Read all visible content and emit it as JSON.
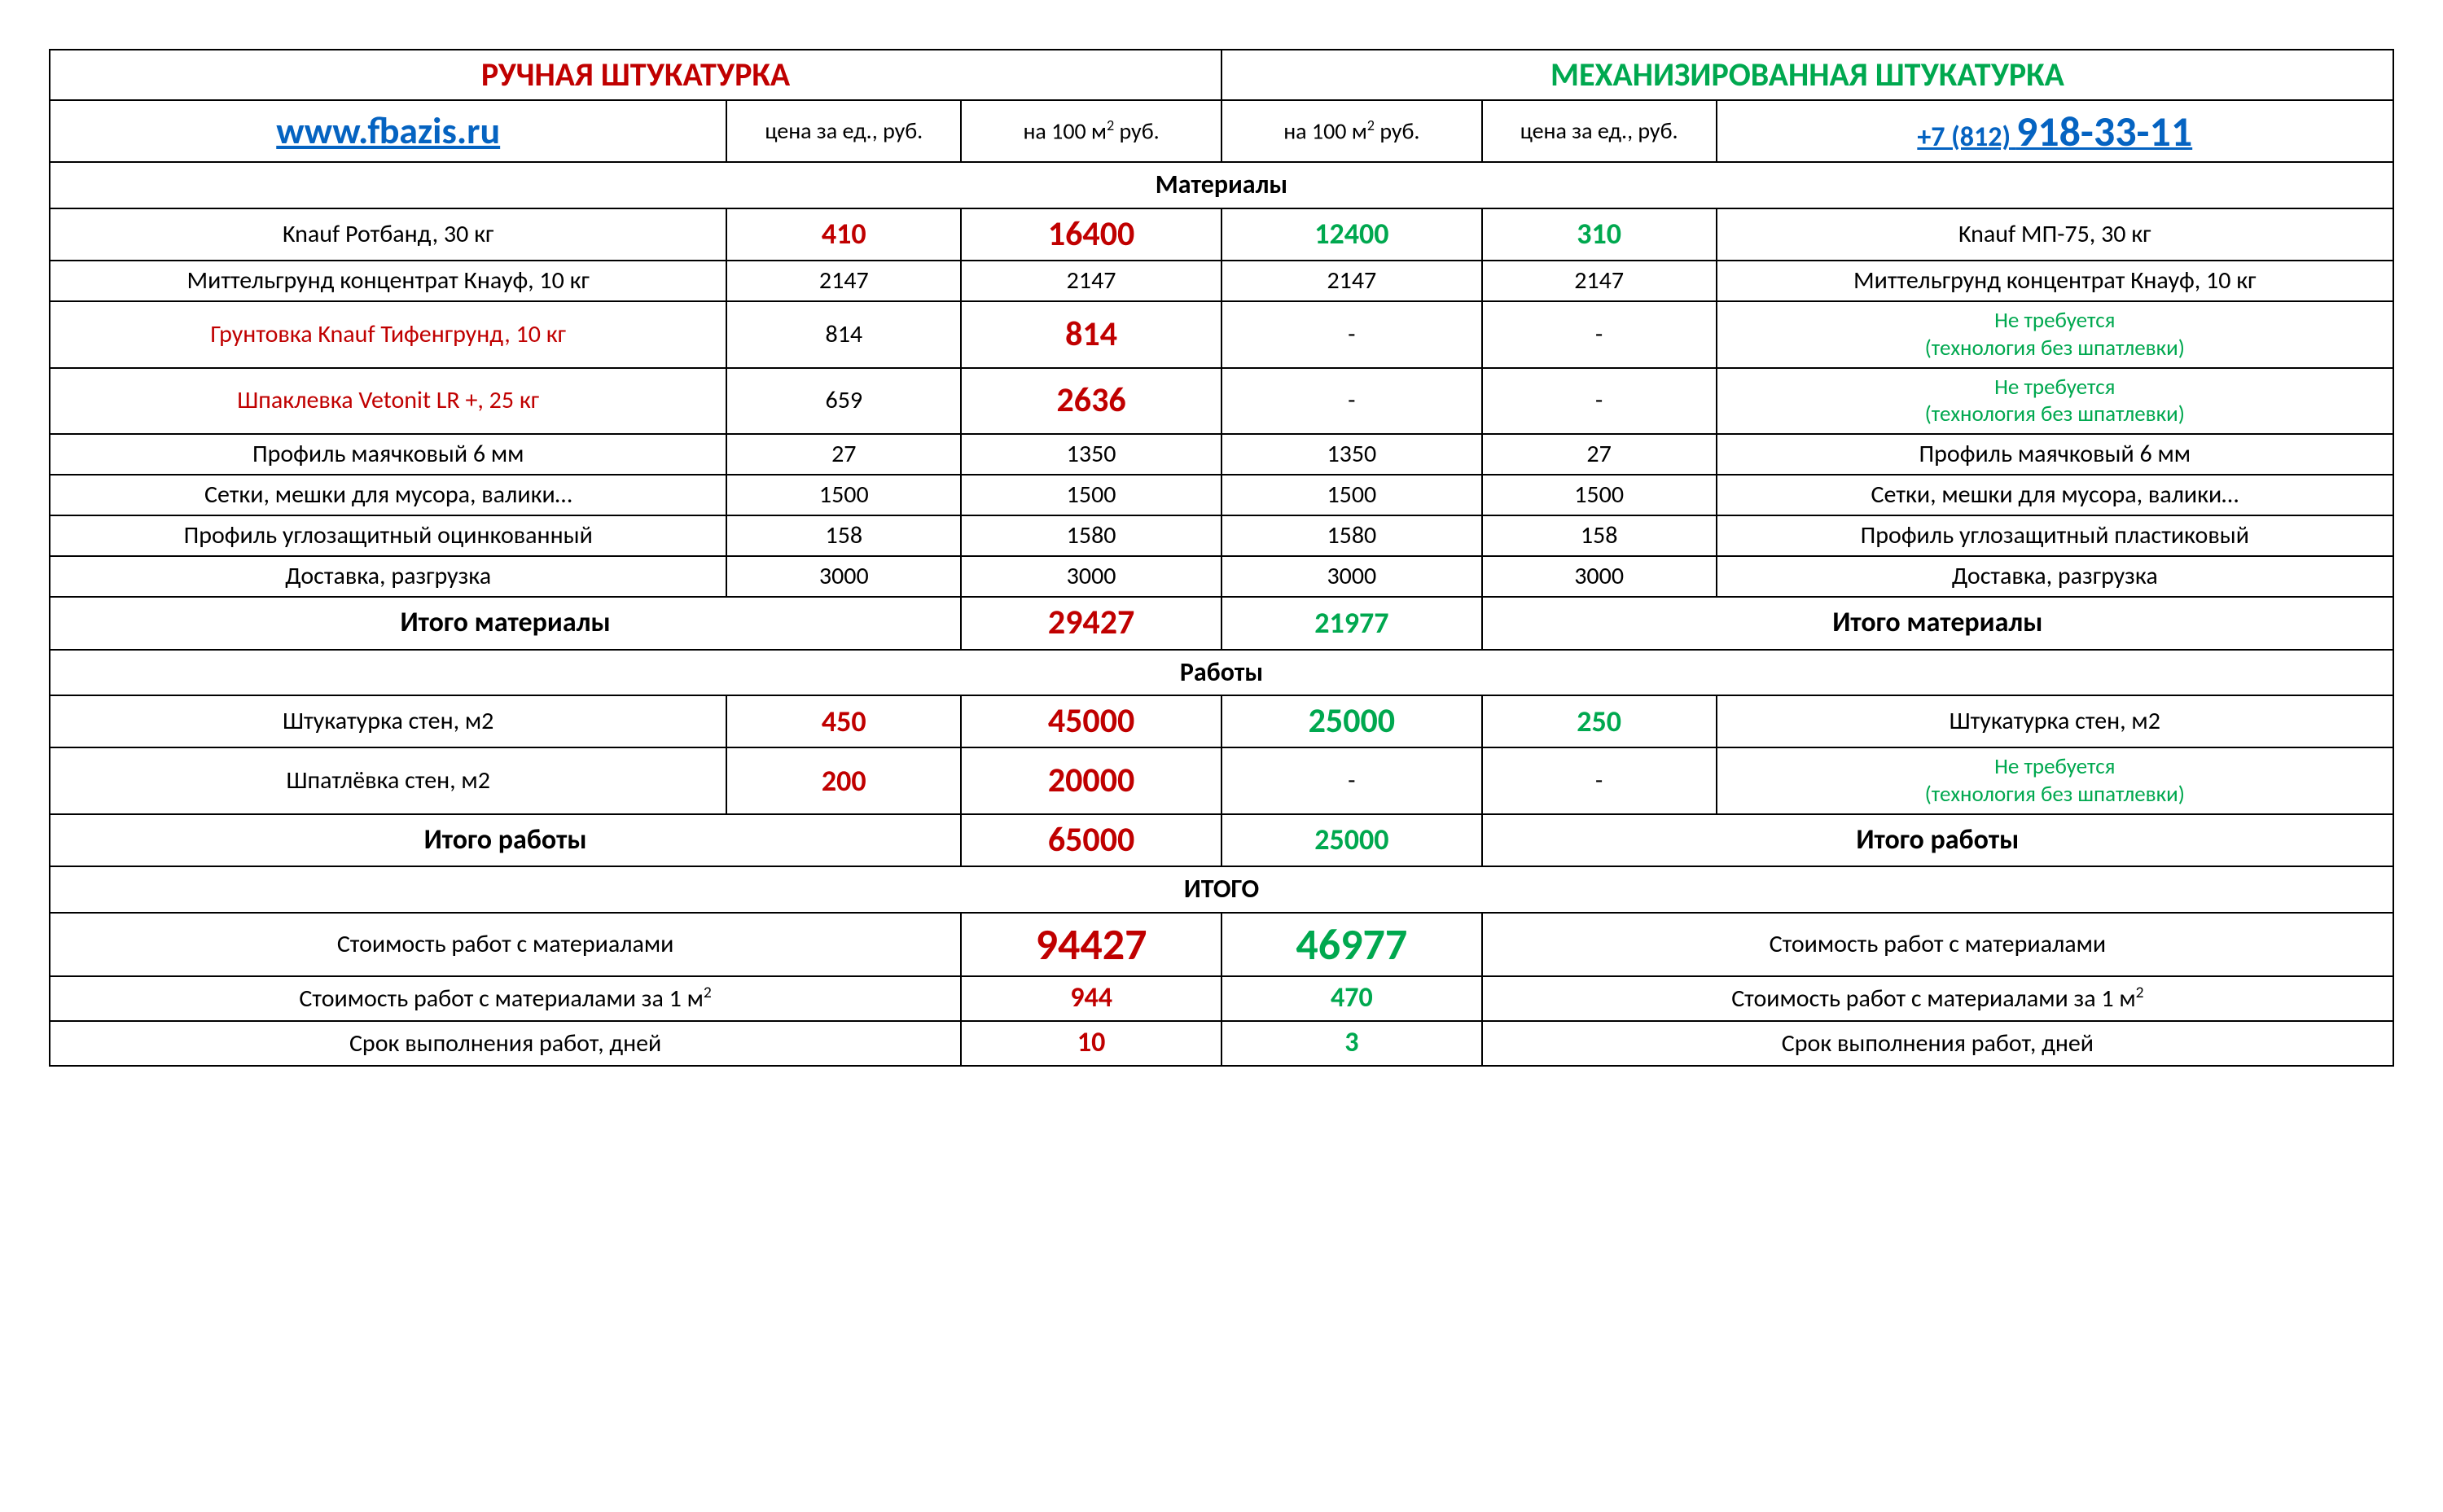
{
  "colors": {
    "red": "#c00000",
    "green": "#00a84f",
    "blue_link": "#0563c1",
    "border": "#000000",
    "background": "#ffffff",
    "text": "#000000"
  },
  "fonts": {
    "family": "Calibri, Arial, sans-serif",
    "header_size_pt": 30,
    "body_size_pt": 22,
    "totals_size_pt": 40
  },
  "header": {
    "left_title": "РУЧНАЯ ШТУКАТУРКА",
    "right_title": "МЕХАНИЗИРОВАННАЯ ШТУКАТУРКА",
    "website": "www.fbazis.ru",
    "phone_prefix": "+7 (812)",
    "phone_main": "918-33-11",
    "col_price_unit": "цена за ед., руб.",
    "col_per_100m2_html": "на 100 м<sup>2</sup> руб."
  },
  "sections": {
    "materials": "Материалы",
    "works": "Работы",
    "total": "ИТОГО"
  },
  "materials": [
    {
      "left_name": "Knauf Ротбанд, 30 кг",
      "left_name_color": "black",
      "left_unit": "410",
      "left_unit_style": "red-bold",
      "left_total": "16400",
      "left_total_style": "red-bold-big",
      "right_total": "12400",
      "right_total_style": "green-bold",
      "right_unit": "310",
      "right_unit_style": "green-bold",
      "right_name": "Knauf МП-75, 30 кг",
      "right_note": ""
    },
    {
      "left_name": "Миттельгрунд концентрат Кнауф, 10 кг",
      "left_name_color": "black",
      "left_unit": "2147",
      "left_unit_style": "black",
      "left_total": "2147",
      "left_total_style": "black",
      "right_total": "2147",
      "right_total_style": "black",
      "right_unit": "2147",
      "right_unit_style": "black",
      "right_name": "Миттельгрунд концентрат Кнауф, 10 кг",
      "right_note": ""
    },
    {
      "left_name": "Грунтовка Knauf Тифенгрунд, 10 кг",
      "left_name_color": "red",
      "left_unit": "814",
      "left_unit_style": "black",
      "left_total": "814",
      "left_total_style": "red-bold-big",
      "right_total": "-",
      "right_total_style": "black",
      "right_unit": "-",
      "right_unit_style": "black",
      "right_name": "",
      "right_note": "Не требуется\n(технология без шпатлевки)"
    },
    {
      "left_name": "Шпаклевка Vetonit LR +,  25 кг",
      "left_name_color": "red",
      "left_unit": "659",
      "left_unit_style": "black",
      "left_total": "2636",
      "left_total_style": "red-bold-big",
      "right_total": "-",
      "right_total_style": "black",
      "right_unit": "-",
      "right_unit_style": "black",
      "right_name": "",
      "right_note": "Не требуется\n(технология без шпатлевки)"
    },
    {
      "left_name": "Профиль маячковый 6 мм",
      "left_name_color": "black",
      "left_unit": "27",
      "left_unit_style": "black",
      "left_total": "1350",
      "left_total_style": "black",
      "right_total": "1350",
      "right_total_style": "black",
      "right_unit": "27",
      "right_unit_style": "black",
      "right_name": "Профиль маячковый 6 мм",
      "right_note": ""
    },
    {
      "left_name": "Сетки, мешки для мусора, валики…",
      "left_name_color": "black",
      "left_unit": "1500",
      "left_unit_style": "black",
      "left_total": "1500",
      "left_total_style": "black",
      "right_total": "1500",
      "right_total_style": "black",
      "right_unit": "1500",
      "right_unit_style": "black",
      "right_name": "Сетки, мешки для мусора, валики…",
      "right_note": ""
    },
    {
      "left_name": "Профиль углозащитный оцинкованный",
      "left_name_color": "black",
      "left_unit": "158",
      "left_unit_style": "black",
      "left_total": "1580",
      "left_total_style": "black",
      "right_total": "1580",
      "right_total_style": "black",
      "right_unit": "158",
      "right_unit_style": "black",
      "right_name": "Профиль углозащитный пластиковый",
      "right_note": ""
    },
    {
      "left_name": "Доставка, разгрузка",
      "left_name_color": "black",
      "left_unit": "3000",
      "left_unit_style": "black",
      "left_total": "3000",
      "left_total_style": "black",
      "right_total": "3000",
      "right_total_style": "black",
      "right_unit": "3000",
      "right_unit_style": "black",
      "right_name": "Доставка, разгрузка",
      "right_note": ""
    }
  ],
  "materials_total": {
    "left_label": "Итого материалы",
    "left_value": "29427",
    "right_value": "21977",
    "right_label": "Итого материалы"
  },
  "works": [
    {
      "left_name": "Штукатурка стен, м2",
      "left_unit": "450",
      "left_total": "45000",
      "right_total": "25000",
      "right_unit": "250",
      "right_name": "Штукатурка стен, м2",
      "right_note": ""
    },
    {
      "left_name": "Шпатлёвка стен, м2",
      "left_unit": "200",
      "left_total": "20000",
      "right_total": "-",
      "right_unit": "-",
      "right_name": "",
      "right_note": "Не требуется\n(технология без шпатлевки)"
    }
  ],
  "works_total": {
    "left_label": "Итого работы",
    "left_value": "65000",
    "right_value": "25000",
    "right_label": "Итого работы"
  },
  "grand": [
    {
      "left_label": "Стоимость работ с материалами",
      "left_value": "94427",
      "left_style": "huge",
      "right_value": "46977",
      "right_style": "huge",
      "right_label": "Стоимость работ с материалами"
    },
    {
      "left_label_html": "Стоимость работ с материалами за 1 м<sup>2</sup>",
      "left_value": "944",
      "left_style": "med",
      "right_value": "470",
      "right_style": "med",
      "right_label_html": "Стоимость работ с материалами за 1 м<sup>2</sup>"
    },
    {
      "left_label": "Срок выполнения работ, дней",
      "left_value": "10",
      "left_style": "med",
      "right_value": "3",
      "right_style": "med",
      "right_label": "Срок выполнения работ, дней"
    }
  ]
}
